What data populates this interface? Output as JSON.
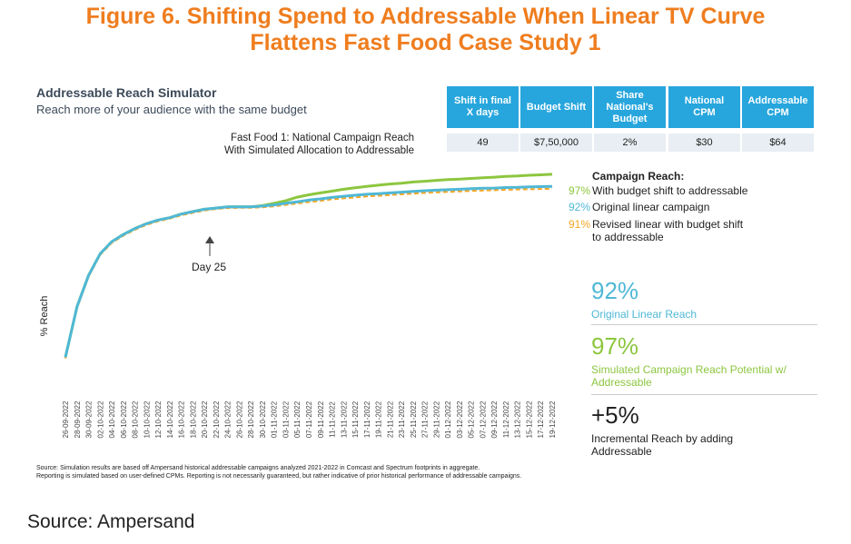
{
  "figure_title_line1": "Figure 6. Shifting Spend to Addressable When Linear TV Curve",
  "figure_title_line2": "Flattens Fast Food Case Study 1",
  "simulator": {
    "title": "Addressable Reach Simulator",
    "subtitle": "Reach more of your audience with the same budget"
  },
  "chart_title_line1": "Fast Food 1: National Campaign Reach",
  "chart_title_line2": "With Simulated Allocation to Addressable",
  "kpis": [
    {
      "head1": "Shift in final",
      "head2": "X days",
      "head3": "",
      "value": "49"
    },
    {
      "head1": "Budget Shift",
      "head2": "",
      "head3": "",
      "value": "$7,50,000"
    },
    {
      "head1": "Share",
      "head2": "National's",
      "head3": "Budget",
      "value": "2%"
    },
    {
      "head1": "National",
      "head2": "CPM",
      "head3": "",
      "value": "$30"
    },
    {
      "head1": "Addressable",
      "head2": "CPM",
      "head3": "",
      "value": "$64"
    }
  ],
  "legend": {
    "title": "Campaign Reach:",
    "items": [
      {
        "pct": "97%",
        "label": "With budget  shift to addressable",
        "label2": "",
        "color": "#8dc63f"
      },
      {
        "pct": "92%",
        "label": "Original  linear campaign",
        "label2": "",
        "color": "#4fb8d6"
      },
      {
        "pct": "91%",
        "label": "Revised linear with budget shift",
        "label2": "to addressable",
        "color": "#f5a623"
      }
    ]
  },
  "stats": [
    {
      "value": "92%",
      "label": "Original  Linear Reach",
      "label2": "",
      "color": "#4fb8d6"
    },
    {
      "value": "97%",
      "label": "Simulated  Campaign  Reach Potential  w/",
      "label2": "Addressable",
      "color": "#8dc63f"
    },
    {
      "value": "+5%",
      "label": "Incremental  Reach by adding",
      "label2": "Addressable",
      "color": "#222222"
    }
  ],
  "annotation": "Day 25",
  "source_note_line1": "Source: Simulation results are based off Ampersand historical addressable campaigns analyzed 2021-2022 in Comcast and Spectrum footprints in aggregate.",
  "source_note_line2": "Reporting is simulated based on user-defined  CPMs. Reporting is not necessarily guaranteed,  but rather indicative of prior historical performance  of addressable campaigns.",
  "source": "Source: Ampersand",
  "chart_data": {
    "type": "line",
    "ylabel": "% Reach",
    "xlabel": "",
    "ylim": [
      20,
      100
    ],
    "grid": false,
    "legend_position": "right",
    "x": [
      "26-09-2022",
      "28-09-2022",
      "30-09-2022",
      "02-10-2022",
      "04-10-2022",
      "06-10-2022",
      "08-10-2022",
      "10-10-2022",
      "12-10-2022",
      "14-10-2022",
      "16-10-2022",
      "18-10-2022",
      "20-10-2022",
      "22-10-2022",
      "24-10-2022",
      "26-10-2022",
      "28-10-2022",
      "30-10-2022",
      "01-11-2022",
      "03-11-2022",
      "05-11-2022",
      "07-11-2022",
      "09-11-2022",
      "11-11-2022",
      "13-11-2022",
      "15-11-2022",
      "17-11-2022",
      "19-11-2022",
      "21-11-2022",
      "23-11-2022",
      "25-11-2022",
      "27-11-2022",
      "29-11-2022",
      "01-12-2022",
      "03-12-2022",
      "05-12-2022",
      "07-12-2022",
      "09-12-2022",
      "11-12-2022",
      "13-12-2022",
      "15-12-2022",
      "17-12-2022",
      "19-12-2022"
    ],
    "series": [
      {
        "name": "With budget  shift to addressable",
        "color": "#8dc63f",
        "values": [
          21,
          42,
          55,
          64,
          69,
          72,
          74.5,
          76.5,
          78,
          79,
          80.5,
          81.5,
          82.5,
          83,
          83.5,
          83.5,
          83.5,
          84,
          85,
          86,
          87.5,
          88.5,
          89.3,
          90,
          90.8,
          91.4,
          92,
          92.5,
          93,
          93.3,
          93.8,
          94.1,
          94.5,
          94.8,
          95,
          95.3,
          95.6,
          95.8,
          96.1,
          96.3,
          96.6,
          96.8,
          97
        ]
      },
      {
        "name": "Original  linear campaign",
        "color": "#4fb8d6",
        "values": [
          21,
          42,
          55,
          64,
          69,
          72,
          74.5,
          76.5,
          78,
          79,
          80.5,
          81.5,
          82.5,
          83,
          83.5,
          83.5,
          83.5,
          83.8,
          84.3,
          85,
          85.6,
          86.3,
          86.8,
          87.4,
          87.9,
          88.3,
          88.7,
          89,
          89.3,
          89.6,
          89.9,
          90.2,
          90.4,
          90.6,
          90.8,
          91,
          91.2,
          91.3,
          91.5,
          91.6,
          91.8,
          91.9,
          92
        ]
      },
      {
        "name": "Revised linear with budget shift to addressable",
        "color": "#f5a623",
        "values": [
          20.5,
          41.5,
          54.5,
          63.5,
          68.5,
          71.5,
          74,
          76,
          77.5,
          78.6,
          80,
          81,
          82,
          82.6,
          83,
          83.1,
          83.1,
          83.3,
          83.7,
          84.3,
          84.9,
          85.5,
          86,
          86.6,
          87,
          87.4,
          87.8,
          88.1,
          88.4,
          88.7,
          89,
          89.3,
          89.5,
          89.7,
          89.9,
          90.1,
          90.3,
          90.4,
          90.6,
          90.7,
          90.8,
          90.9,
          91
        ]
      }
    ]
  }
}
